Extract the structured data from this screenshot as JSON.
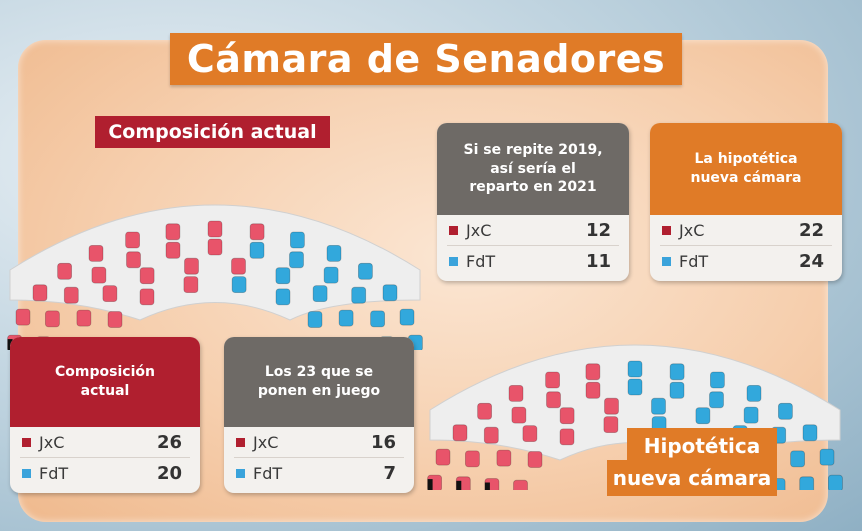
{
  "title": "Cámara de Senadores",
  "label_current": "Composición actual",
  "label_hypothetical": [
    "Hipotética",
    "nueva cámara"
  ],
  "colors": {
    "jxc": "#e8546a",
    "fdt": "#32a8dc",
    "dark": "#111111"
  },
  "hemicycle_current": {
    "jxc": 26,
    "fdt": 20,
    "highlight_jxc": 16,
    "highlight_fdt": 7
  },
  "hemicycle_hypothetical": {
    "jxc": 22,
    "fdt": 24
  },
  "cards": {
    "current": {
      "heading": [
        "Composición",
        "actual"
      ],
      "jxc_label": "JxC",
      "jxc_value": "26",
      "fdt_label": "FdT",
      "fdt_value": "20"
    },
    "at_stake": {
      "heading": [
        "Los 23 que se",
        "ponen en juego"
      ],
      "jxc_label": "JxC",
      "jxc_value": "16",
      "fdt_label": "FdT",
      "fdt_value": "7"
    },
    "repeat_2019": {
      "heading": [
        "Si se repite 2019,",
        "así sería el",
        "reparto en 2021"
      ],
      "jxc_label": "JxC",
      "jxc_value": "12",
      "fdt_label": "FdT",
      "fdt_value": "11"
    },
    "hypothetical": {
      "heading": [
        "La hipotética",
        "nueva cámara"
      ],
      "jxc_label": "JxC",
      "jxc_value": "22",
      "fdt_label": "FdT",
      "fdt_value": "24"
    }
  }
}
